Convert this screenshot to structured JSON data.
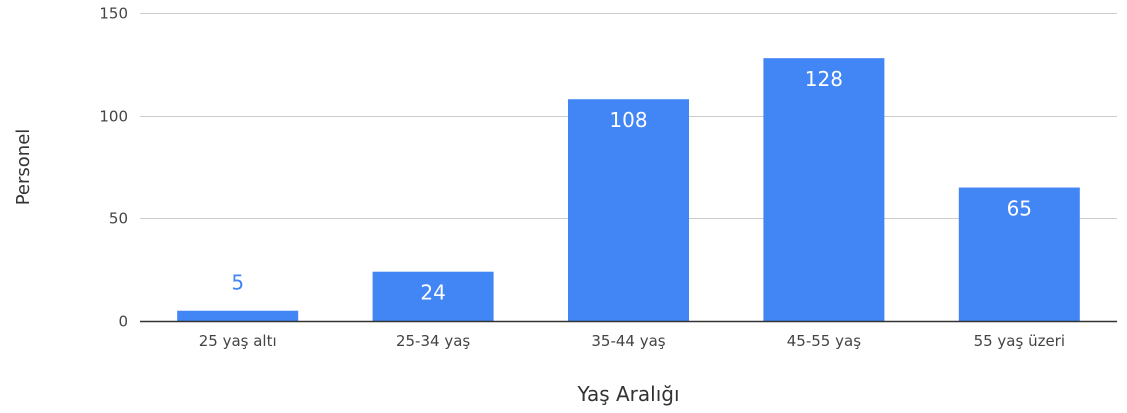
{
  "chart_data": {
    "type": "bar",
    "title": "",
    "xlabel": "Yaş Aralığı",
    "ylabel": "Personel",
    "categories": [
      "25 yaş altı",
      "25-34 yaş",
      "35-44 yaş",
      "45-55 yaş",
      "55 yaş üzeri"
    ],
    "values": [
      5,
      24,
      108,
      128,
      65
    ],
    "data_labels": [
      "5",
      "24",
      "108",
      "128",
      "65"
    ],
    "ylim": [
      0,
      150
    ],
    "yticks": [
      0,
      50,
      100,
      150
    ],
    "ytick_labels": [
      "0",
      "50",
      "100",
      "150"
    ],
    "grid": true,
    "legend": "none",
    "colors": {
      "bar": "#4285f4",
      "label_inside": "#ffffff",
      "label_outside": "#4285f4",
      "grid": "#cccccc",
      "baseline": "#333333"
    }
  }
}
